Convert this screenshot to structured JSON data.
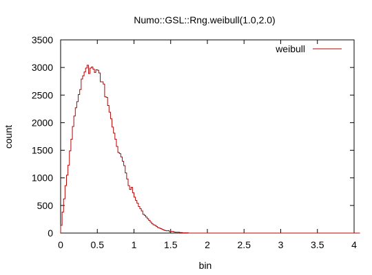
{
  "chart_data": {
    "type": "histogram-step",
    "title": "Numo::GSL::Rng.weibull(1.0,2.0)",
    "xlabel": "bin",
    "ylabel": "count",
    "xlim": [
      0,
      4
    ],
    "ylim": [
      0,
      3500
    ],
    "x_ticks": [
      "0",
      "0.5",
      "1",
      "1.5",
      "2",
      "2.5",
      "3",
      "3.5",
      "4"
    ],
    "y_ticks": [
      "0",
      "500",
      "1000",
      "1500",
      "2000",
      "2500",
      "3000",
      "3500"
    ],
    "grid": false,
    "legend_position": "top-right",
    "series": [
      {
        "name": "weibull",
        "color": "#b30000",
        "bin_width": 0.02,
        "x_start": 0.0,
        "values": [
          140,
          380,
          620,
          860,
          1050,
          1230,
          1490,
          1700,
          1930,
          2120,
          2270,
          2380,
          2510,
          2600,
          2790,
          2850,
          2920,
          2990,
          3040,
          2890,
          2990,
          3010,
          2970,
          2910,
          2960,
          2950,
          2900,
          2740,
          2740,
          2700,
          2470,
          2460,
          2310,
          2190,
          2070,
          1920,
          1810,
          1700,
          1570,
          1460,
          1440,
          1380,
          1300,
          1220,
          1090,
          980,
          860,
          790,
          830,
          730,
          650,
          590,
          540,
          480,
          440,
          400,
          340,
          320,
          290,
          260,
          230,
          200,
          170,
          150,
          140,
          120,
          100,
          90,
          80,
          65,
          55,
          45,
          40,
          45,
          25,
          30,
          30,
          20,
          15,
          15,
          15,
          10,
          10,
          5,
          5,
          5,
          5,
          0,
          0,
          0,
          0,
          0,
          0,
          0,
          0,
          0,
          0,
          0,
          0,
          0,
          0,
          0,
          0,
          0,
          0,
          0,
          0,
          0,
          0,
          0,
          0,
          0,
          0,
          0,
          0,
          0,
          0,
          0,
          0,
          0,
          0,
          0,
          0,
          0,
          0,
          0,
          0,
          0,
          0,
          0,
          0,
          0,
          0,
          0,
          0,
          0,
          0,
          0,
          0,
          0,
          0,
          0,
          0,
          0,
          0,
          0,
          0,
          0,
          0,
          0,
          0,
          0,
          0,
          0,
          0,
          0,
          0,
          0,
          0,
          0,
          0,
          0,
          0,
          0,
          0,
          0,
          0,
          0,
          0,
          0,
          0,
          0,
          0,
          0,
          0,
          0,
          0,
          0,
          0,
          0,
          0,
          0,
          0,
          0,
          0,
          0,
          0,
          0,
          0,
          0,
          0,
          0,
          0,
          0,
          0,
          0,
          0,
          0,
          0,
          0,
          0,
          0,
          0,
          0
        ]
      }
    ]
  }
}
